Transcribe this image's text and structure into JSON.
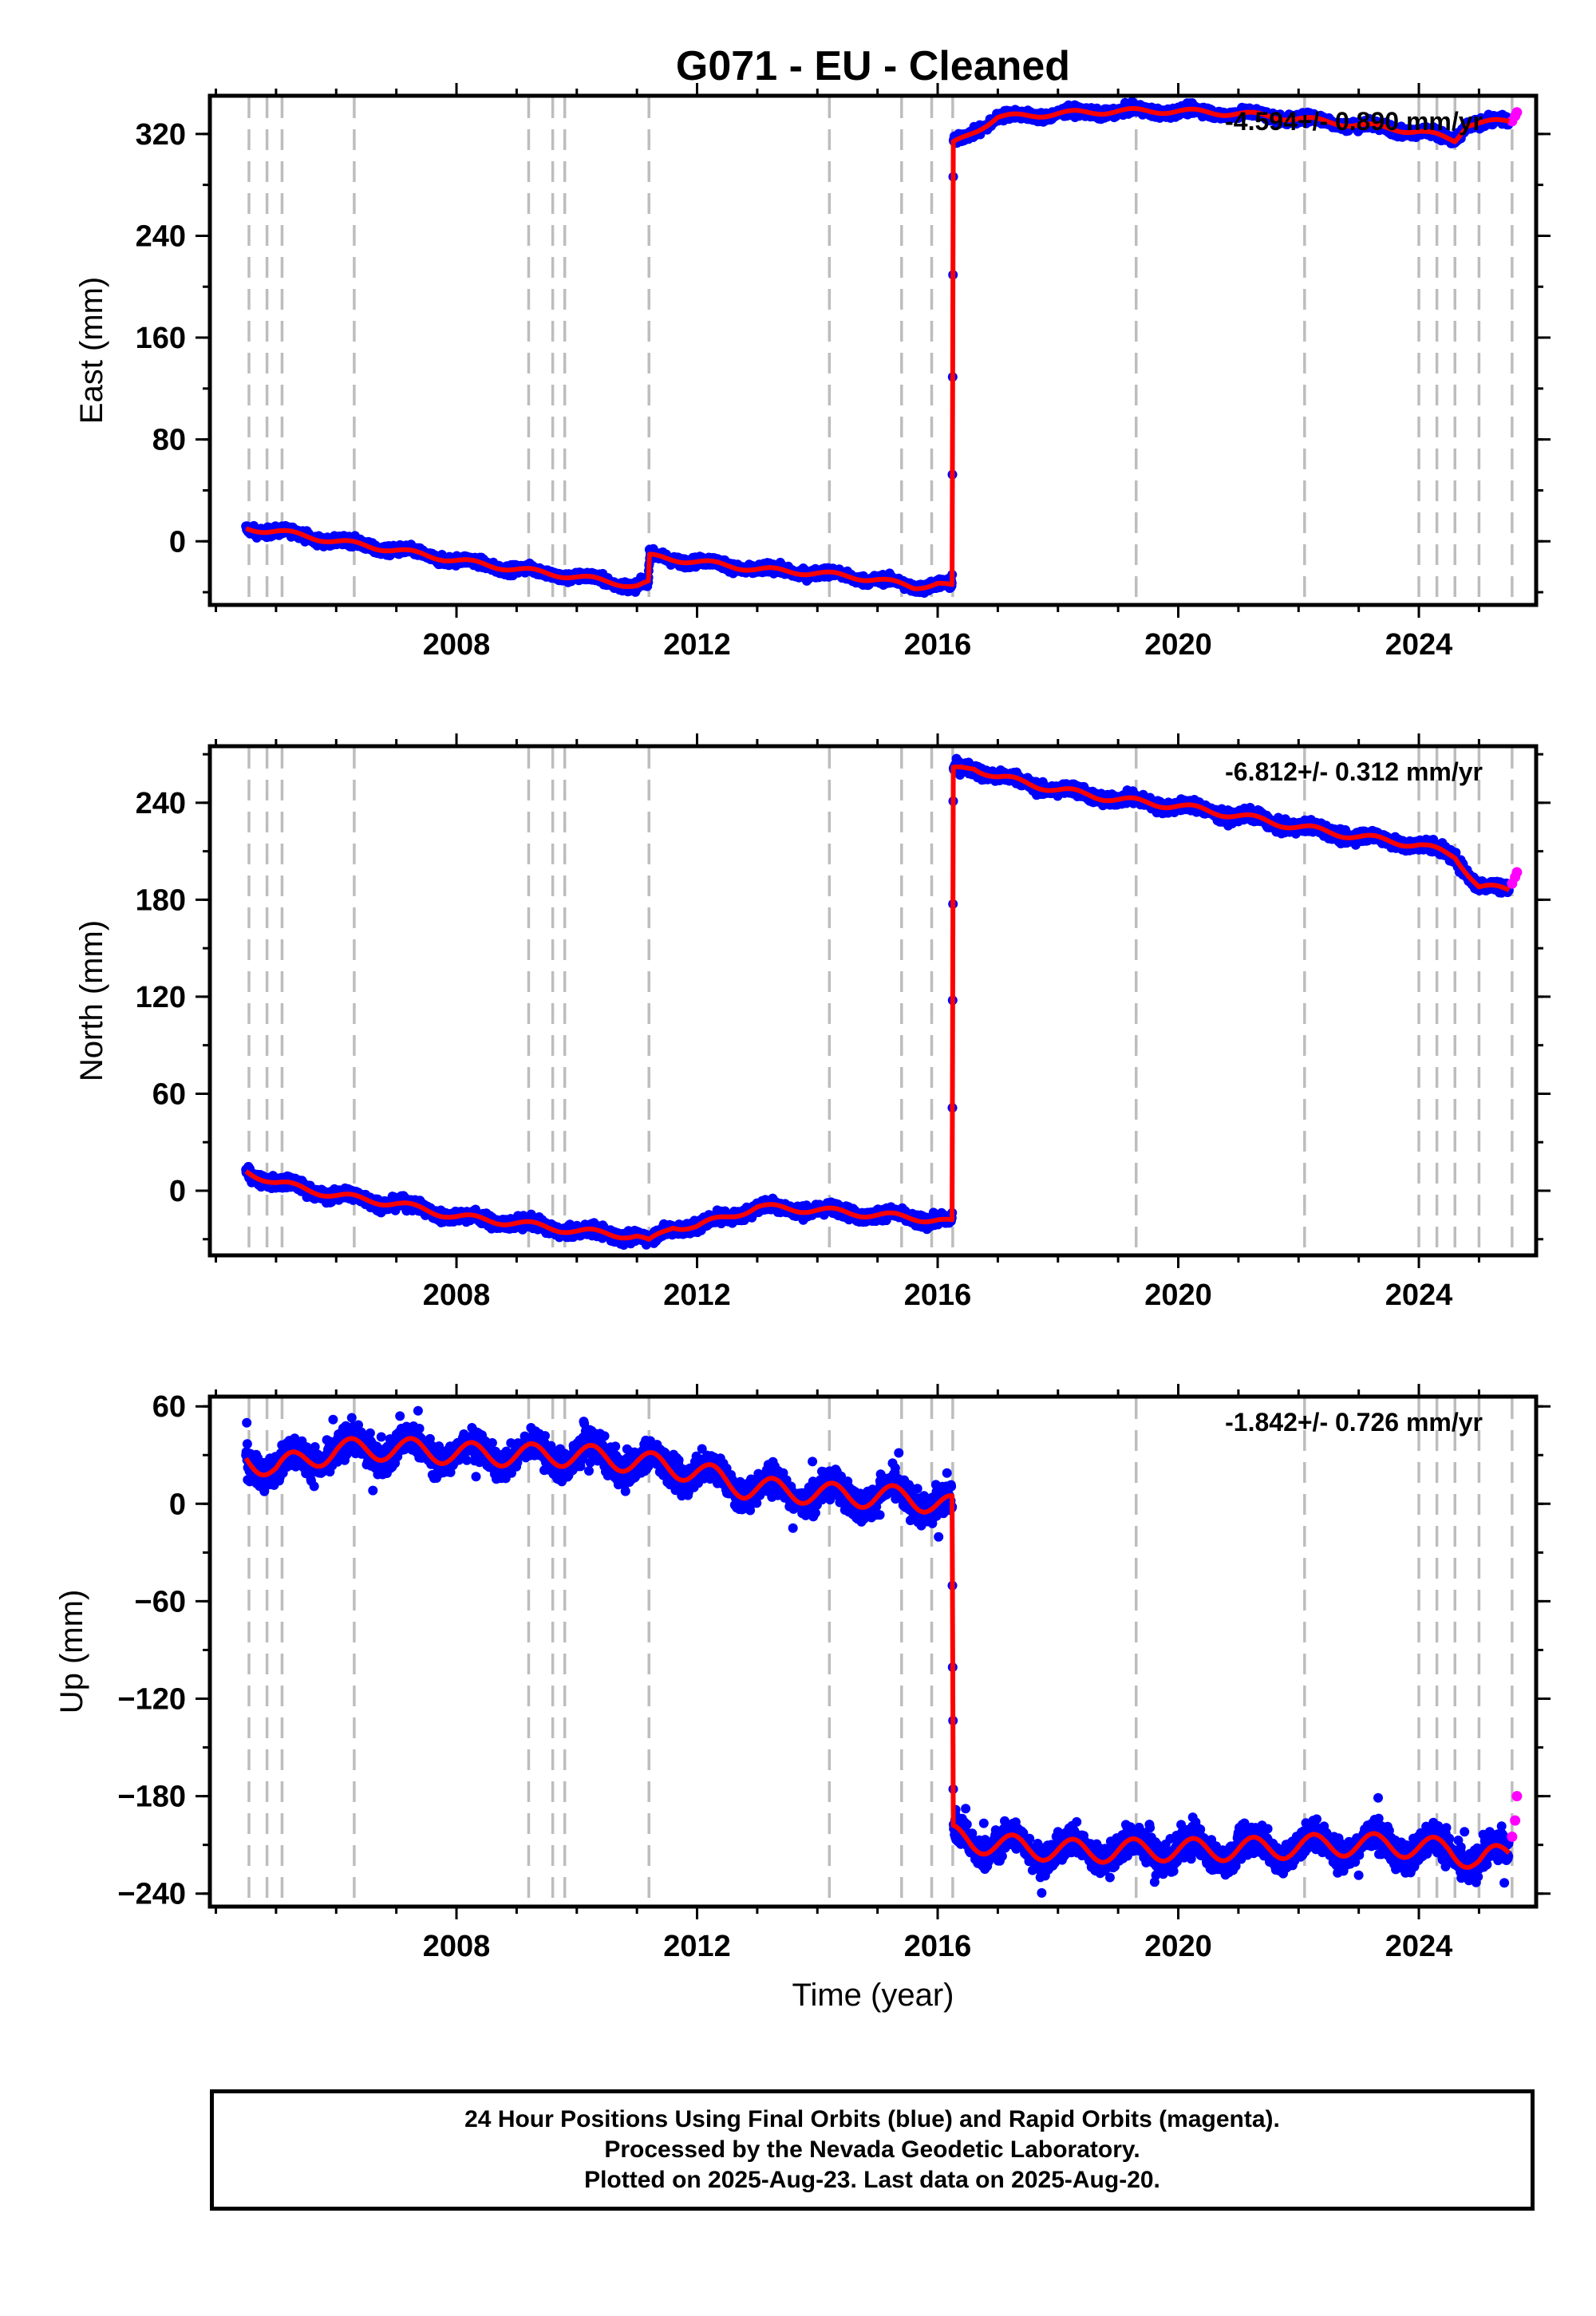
{
  "title": "G071  - EU - Cleaned",
  "xlabel": "Time (year)",
  "colors": {
    "final_orbits": "#0000ff",
    "rapid_orbits": "#ff00ff",
    "model": "#ff0000",
    "event_lines": "#bdbdbd"
  },
  "footer": {
    "line1": "24 Hour Positions Using Final Orbits (blue) and Rapid Orbits (magenta).",
    "line2": "Processed by the Nevada Geodetic Laboratory.",
    "line3": "Plotted on 2025-Aug-23. Last data on 2025-Aug-20."
  },
  "chart_data": [
    {
      "type": "scatter",
      "panel": "East",
      "ylabel": "East (mm)",
      "rate_label": "-4.594+/- 0.890 mm/yr",
      "xlim": [
        2003.9,
        2025.95
      ],
      "ylim": [
        -50,
        350
      ],
      "xticks": [
        2008,
        2012,
        2016,
        2020,
        2024
      ],
      "yticks": [
        0,
        80,
        160,
        240,
        320
      ],
      "event_lines": [
        2004.55,
        2004.85,
        2005.1,
        2006.3,
        2009.2,
        2009.6,
        2009.8,
        2011.2,
        2014.2,
        2015.4,
        2015.9,
        2016.25,
        2019.3,
        2022.1,
        2024.0,
        2024.3,
        2024.6,
        2025.0,
        2025.55
      ],
      "offset_times": [
        2011.2,
        2016.25
      ],
      "seasonal_amplitude": 2,
      "series": [
        {
          "name": "Final Orbits",
          "x": [
            2004.5,
            2005.0,
            2006.0,
            2007.0,
            2008.0,
            2009.0,
            2010.0,
            2011.0,
            2011.19,
            2011.21,
            2012.0,
            2013.0,
            2014.0,
            2015.0,
            2015.6,
            2016.0,
            2016.24,
            2016.26,
            2016.6,
            2017.0,
            2018.0,
            2019.0,
            2020.0,
            2021.0,
            2022.0,
            2023.0,
            2024.0,
            2024.6,
            2024.8,
            2025.5
          ],
          "y": [
            10,
            8,
            0,
            -7,
            -15,
            -22,
            -28,
            -35,
            -33,
            -12,
            -16,
            -22,
            -25,
            -30,
            -36,
            -33,
            -36,
            312,
            322,
            333,
            336,
            338,
            338,
            336,
            332,
            327,
            322,
            315,
            328,
            330
          ]
        },
        {
          "name": "Rapid Orbits",
          "x": [
            2025.55,
            2025.6,
            2025.63
          ],
          "y": [
            330,
            334,
            337
          ]
        }
      ]
    },
    {
      "type": "scatter",
      "panel": "North",
      "ylabel": "North (mm)",
      "rate_label": "-6.812+/- 0.312 mm/yr",
      "xlim": [
        2003.9,
        2025.95
      ],
      "ylim": [
        -40,
        275
      ],
      "xticks": [
        2008,
        2012,
        2016,
        2020,
        2024
      ],
      "yticks": [
        0,
        60,
        120,
        180,
        240
      ],
      "event_lines": [
        2004.55,
        2004.85,
        2005.1,
        2006.3,
        2009.2,
        2009.6,
        2009.8,
        2011.2,
        2014.2,
        2015.4,
        2015.9,
        2016.25,
        2019.3,
        2022.1,
        2024.0,
        2024.3,
        2024.6,
        2025.0,
        2025.55
      ],
      "offset_times": [
        2016.25
      ],
      "seasonal_amplitude": 2,
      "series": [
        {
          "name": "Final Orbits",
          "x": [
            2004.5,
            2005.0,
            2006.0,
            2007.0,
            2008.0,
            2009.0,
            2010.0,
            2011.0,
            2011.2,
            2011.6,
            2012.0,
            2012.6,
            2013.0,
            2014.0,
            2015.0,
            2016.0,
            2016.24,
            2016.26,
            2016.6,
            2017.0,
            2018.0,
            2019.0,
            2020.0,
            2021.0,
            2022.0,
            2023.0,
            2024.0,
            2024.6,
            2025.0,
            2025.5
          ],
          "y": [
            12,
            5,
            -3,
            -8,
            -16,
            -20,
            -25,
            -28,
            -32,
            -22,
            -22,
            -15,
            -10,
            -12,
            -15,
            -18,
            -20,
            260,
            262,
            256,
            248,
            242,
            238,
            232,
            225,
            219,
            214,
            207,
            188,
            186
          ]
        },
        {
          "name": "Rapid Orbits",
          "x": [
            2025.55,
            2025.6,
            2025.63
          ],
          "y": [
            190,
            194,
            197
          ]
        }
      ]
    },
    {
      "type": "scatter",
      "panel": "Up",
      "ylabel": "Up (mm)",
      "xlabel": "Time (year)",
      "rate_label": "-1.842+/- 0.726 mm/yr",
      "xlim": [
        2003.9,
        2025.95
      ],
      "ylim": [
        -248,
        66
      ],
      "xticks": [
        2008,
        2012,
        2016,
        2020,
        2024
      ],
      "yticks": [
        60,
        0,
        -60,
        -120,
        -180,
        -240
      ],
      "event_lines": [
        2004.55,
        2004.85,
        2005.1,
        2006.3,
        2009.2,
        2009.6,
        2009.8,
        2011.2,
        2014.2,
        2015.4,
        2015.9,
        2016.25,
        2019.3,
        2022.1,
        2024.0,
        2024.3,
        2024.6,
        2025.0,
        2025.55
      ],
      "offset_times": [
        2016.25
      ],
      "seasonal_amplitude": 7,
      "series": [
        {
          "name": "Final Orbits",
          "x": [
            2004.5,
            2005.0,
            2006.0,
            2007.0,
            2008.0,
            2009.0,
            2010.0,
            2011.0,
            2012.0,
            2012.8,
            2013.5,
            2014.5,
            2015.5,
            2016.0,
            2016.24,
            2016.26,
            2016.6,
            2017.5,
            2018.5,
            2019.5,
            2020.5,
            2021.5,
            2022.5,
            2023.5,
            2024.5,
            2025.0,
            2025.5
          ],
          "y": [
            28,
            22,
            33,
            34,
            31,
            30,
            30,
            26,
            20,
            10,
            8,
            5,
            4,
            0,
            -2,
            -205,
            -208,
            -212,
            -214,
            -213,
            -213,
            -212,
            -210,
            -210,
            -213,
            -220,
            -215
          ]
        },
        {
          "name": "Rapid Orbits",
          "x": [
            2025.55,
            2025.6,
            2025.63
          ],
          "y": [
            -205,
            -195,
            -180
          ]
        }
      ]
    }
  ]
}
